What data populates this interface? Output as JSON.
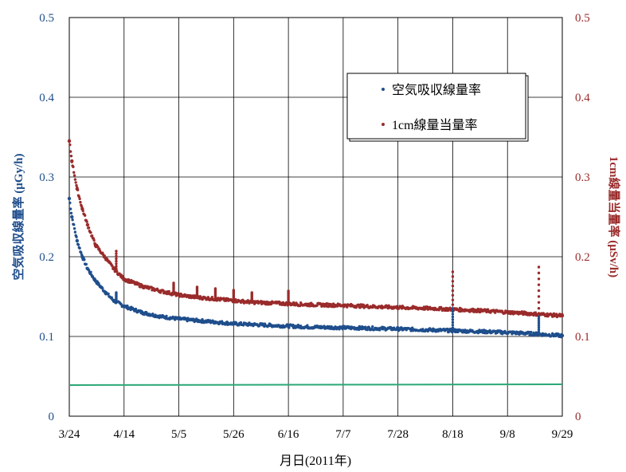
{
  "chart_data": {
    "type": "scatter",
    "xlabel": "月日(2011年)",
    "ylabel_left": "空気吸収線量率 (μGy/h)",
    "ylabel_right": "1cm線量当量率 (μSv/h)",
    "x_ticks": [
      "3/24",
      "4/14",
      "5/5",
      "5/26",
      "6/16",
      "7/7",
      "7/28",
      "8/18",
      "9/8",
      "9/29"
    ],
    "x_range_days": [
      0,
      189
    ],
    "y_left_ticks": [
      "0",
      "0.1",
      "0.2",
      "0.3",
      "0.4",
      "0.5"
    ],
    "y_right_ticks": [
      "0",
      "0.1",
      "0.2",
      "0.3",
      "0.4",
      "0.5"
    ],
    "ylim": [
      0,
      0.5
    ],
    "grid": true,
    "legend_position": "top-right",
    "colors": {
      "left_axis": "#1f4e8c",
      "right_axis": "#9a2b2b",
      "baseline": "#2aa876"
    },
    "series": [
      {
        "name": "空気吸収線量率",
        "axis": "left",
        "color": "#1f4e8c",
        "x_days": [
          0,
          1,
          3,
          5,
          7,
          10,
          14,
          17,
          21,
          28,
          35,
          42,
          49,
          56,
          63,
          70,
          77,
          84,
          91,
          105,
          120,
          140,
          160,
          175,
          189
        ],
        "y": [
          0.273,
          0.25,
          0.22,
          0.2,
          0.185,
          0.17,
          0.155,
          0.145,
          0.138,
          0.13,
          0.125,
          0.122,
          0.12,
          0.118,
          0.116,
          0.115,
          0.114,
          0.113,
          0.112,
          0.111,
          0.11,
          0.108,
          0.106,
          0.104,
          0.101
        ]
      },
      {
        "name": "1cm線量当量率",
        "axis": "right",
        "color": "#9a2b2b",
        "x_days": [
          0,
          1,
          3,
          5,
          7,
          10,
          14,
          17,
          21,
          28,
          35,
          42,
          49,
          56,
          63,
          70,
          77,
          84,
          91,
          105,
          120,
          140,
          160,
          175,
          189
        ],
        "y": [
          0.345,
          0.32,
          0.285,
          0.26,
          0.24,
          0.215,
          0.198,
          0.185,
          0.172,
          0.163,
          0.157,
          0.152,
          0.149,
          0.147,
          0.145,
          0.143,
          0.142,
          0.141,
          0.14,
          0.139,
          0.137,
          0.135,
          0.132,
          0.129,
          0.126
        ]
      },
      {
        "name": "",
        "axis": "left",
        "color": "#2aa876",
        "x_days": [
          0,
          189
        ],
        "y": [
          0.039,
          0.04
        ]
      }
    ],
    "spikes": [
      {
        "series": 0,
        "x_day": 18,
        "y": 0.155
      },
      {
        "series": 1,
        "x_day": 18,
        "y": 0.207
      },
      {
        "series": 1,
        "x_day": 40,
        "y": 0.167
      },
      {
        "series": 1,
        "x_day": 49,
        "y": 0.162
      },
      {
        "series": 1,
        "x_day": 56,
        "y": 0.16
      },
      {
        "series": 1,
        "x_day": 63,
        "y": 0.158
      },
      {
        "series": 1,
        "x_day": 70,
        "y": 0.155
      },
      {
        "series": 1,
        "x_day": 84,
        "y": 0.157
      },
      {
        "series": 1,
        "x_day": 147,
        "y": 0.181
      },
      {
        "series": 0,
        "x_day": 147,
        "y": 0.135
      },
      {
        "series": 1,
        "x_day": 180,
        "y": 0.187
      },
      {
        "series": 0,
        "x_day": 180,
        "y": 0.125
      }
    ]
  }
}
